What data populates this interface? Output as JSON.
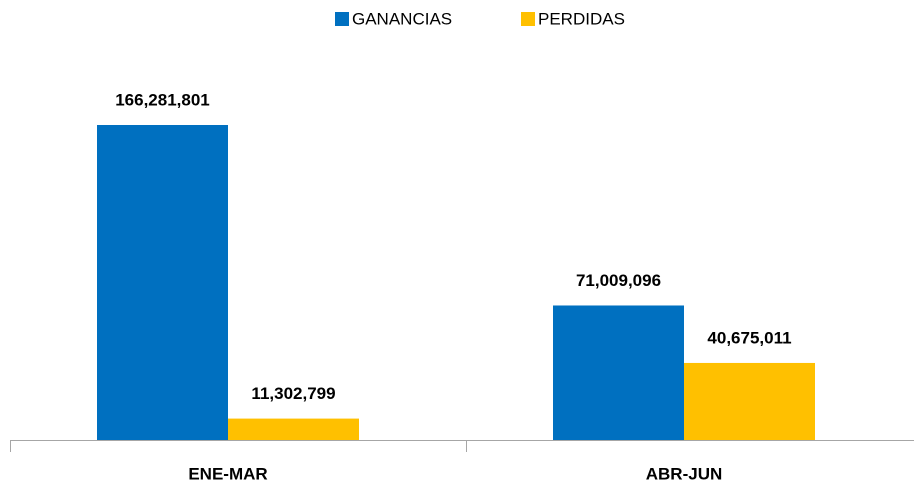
{
  "chart_data": {
    "type": "bar",
    "categories": [
      "ENE-MAR",
      "ABR-JUN"
    ],
    "series": [
      {
        "name": "GANANCIAS",
        "color": "#0070c0",
        "values": [
          166281801,
          71009096
        ],
        "value_labels": [
          "166,281,801",
          "71,009,096"
        ]
      },
      {
        "name": "PERDIDAS",
        "color": "#ffc000",
        "values": [
          11302799,
          40675011
        ],
        "value_labels": [
          "11,302,799",
          "40,675,011"
        ]
      }
    ],
    "legend": "top"
  }
}
